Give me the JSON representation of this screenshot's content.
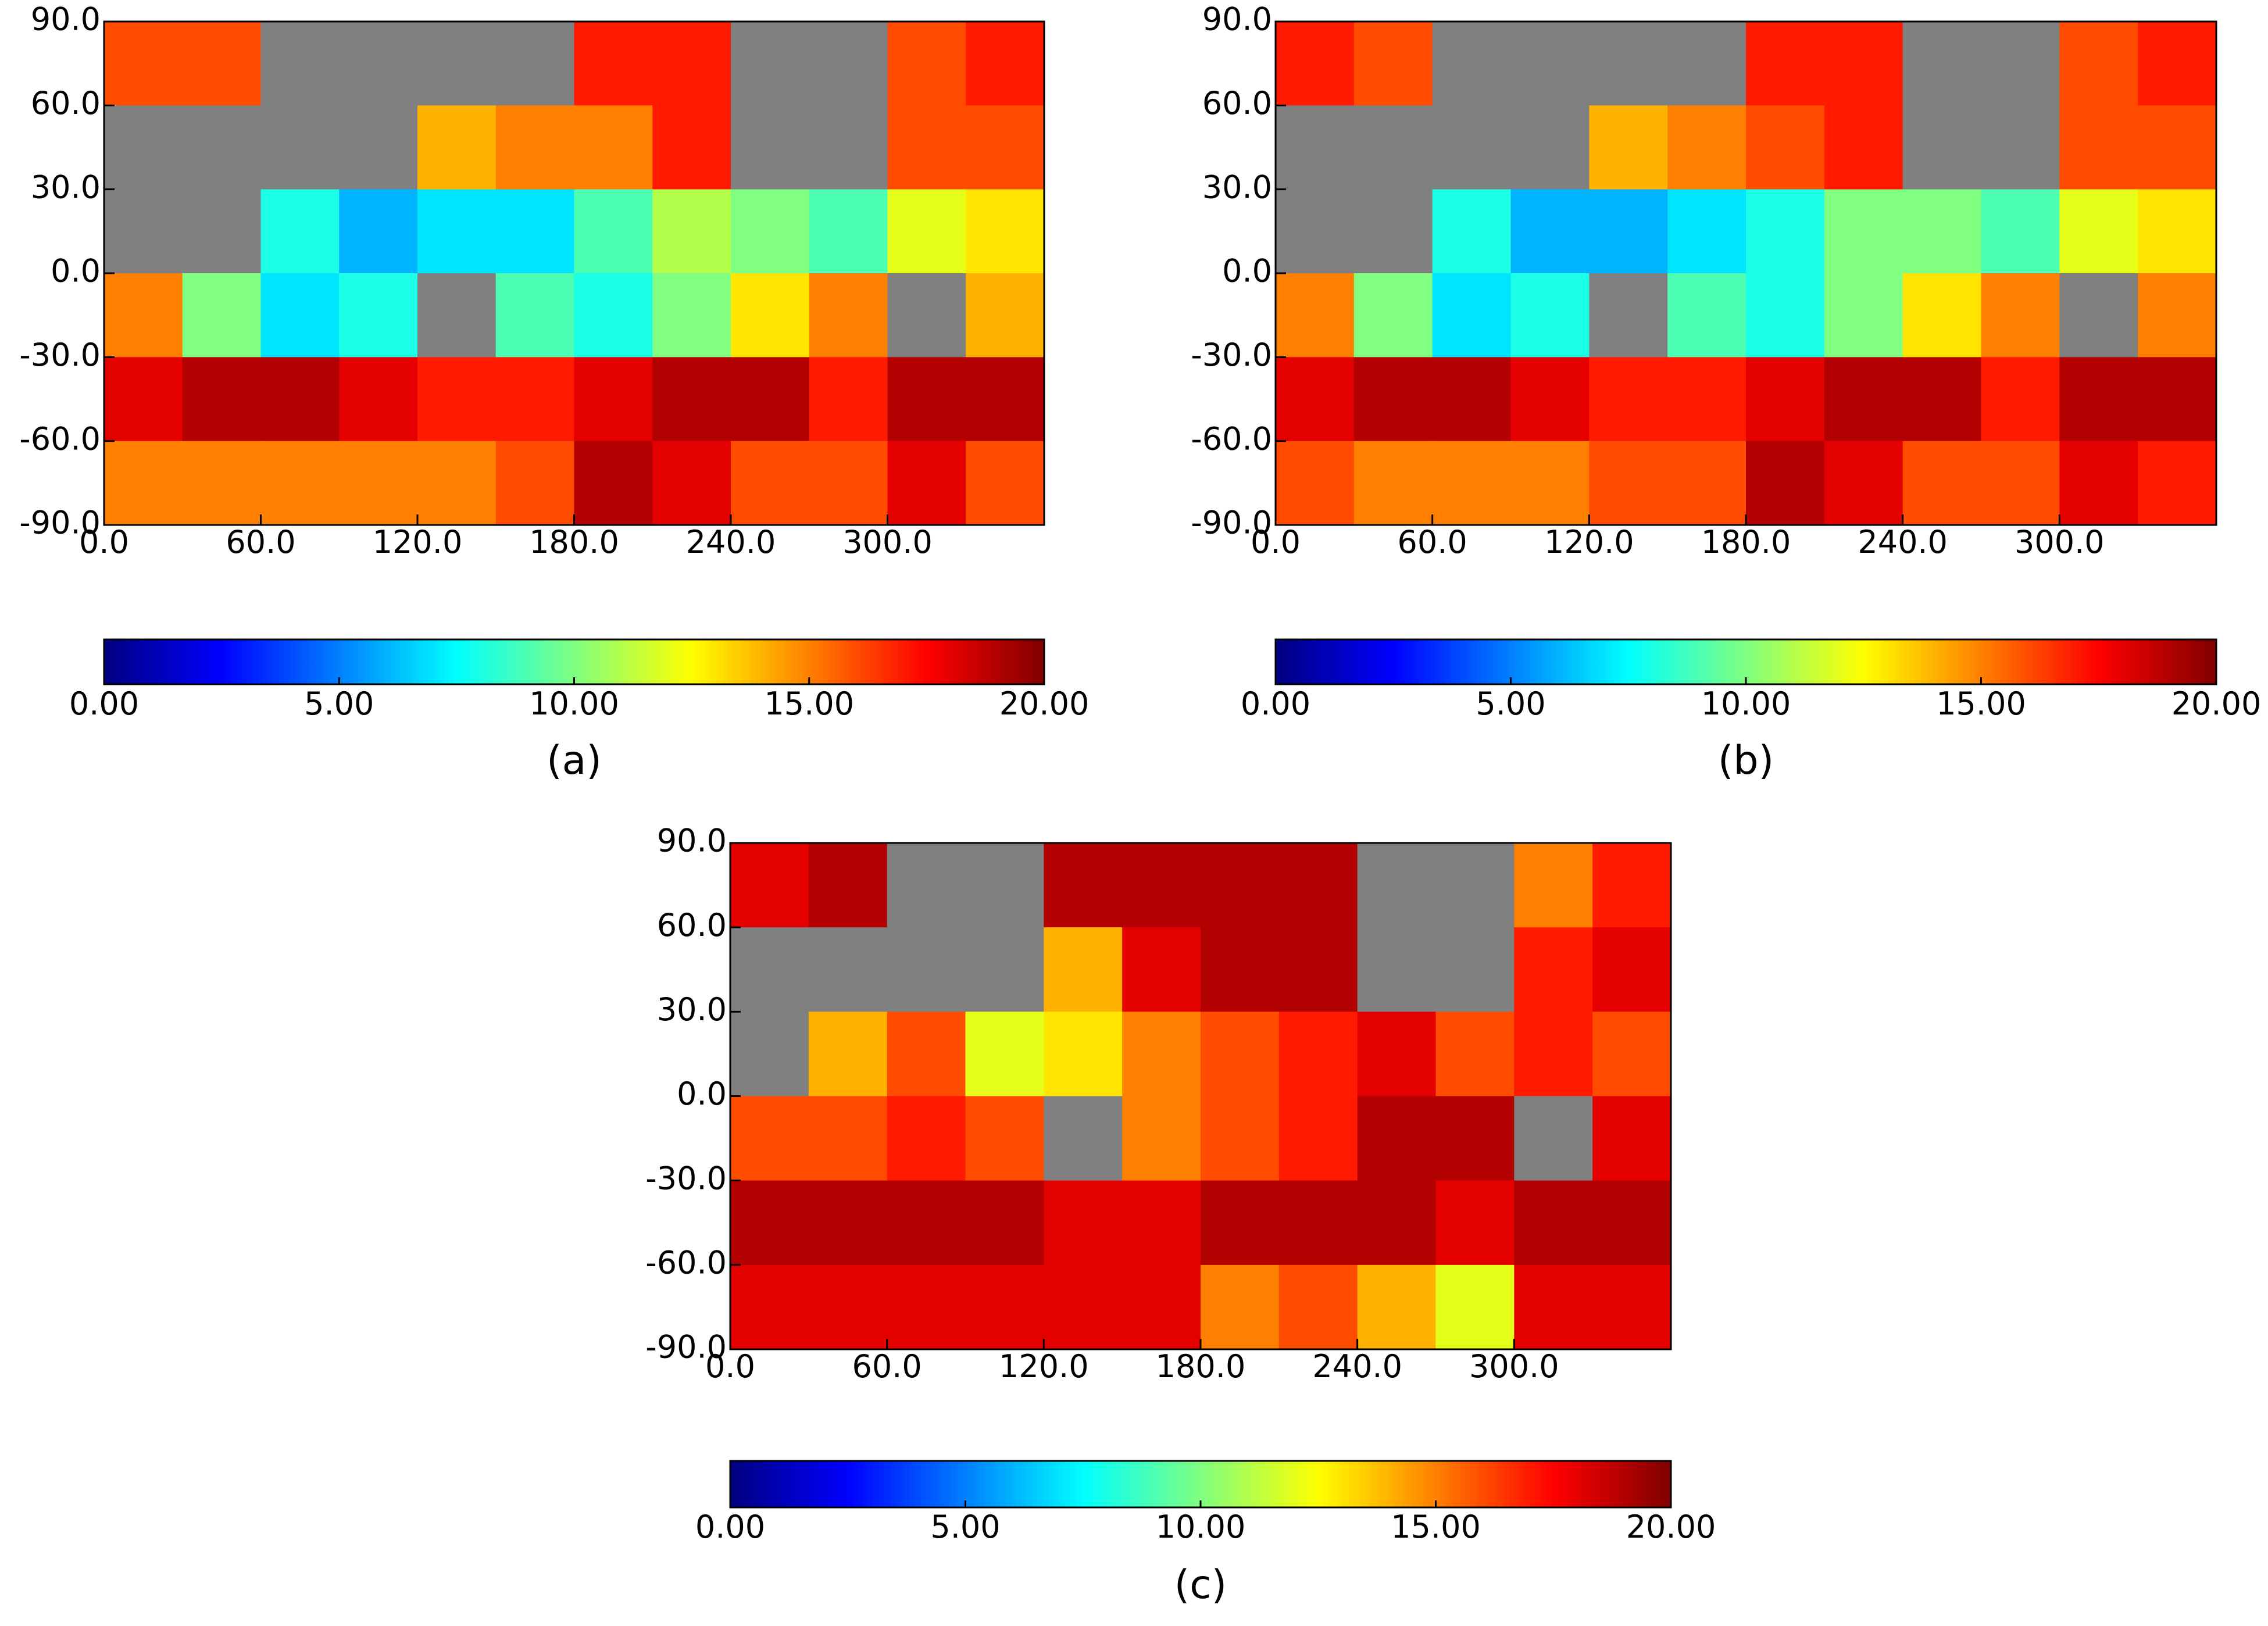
{
  "chart_data": [
    {
      "type": "heatmap",
      "caption": "(a)",
      "colormap": "jet",
      "nan_color": "#808080",
      "xbins": [
        0,
        30,
        60,
        90,
        120,
        150,
        180,
        210,
        240,
        270,
        300,
        330,
        360
      ],
      "ybins": [
        90,
        60,
        30,
        0,
        -30,
        -60,
        -90
      ],
      "values": [
        [
          16,
          16,
          null,
          null,
          null,
          null,
          17,
          17,
          null,
          null,
          16,
          17
        ],
        [
          null,
          null,
          null,
          null,
          14,
          15,
          15,
          17,
          null,
          null,
          16,
          16
        ],
        [
          null,
          null,
          8,
          6,
          7,
          7,
          9,
          11,
          10,
          9,
          12,
          13
        ],
        [
          15,
          10,
          7,
          8,
          null,
          9,
          8,
          10,
          13,
          15,
          null,
          14
        ],
        [
          18,
          19,
          19,
          18,
          17,
          17,
          18,
          19,
          19,
          17,
          19,
          19
        ],
        [
          15,
          15,
          15,
          15,
          15,
          16,
          19,
          18,
          16,
          16,
          18,
          16
        ]
      ],
      "xlim": [
        0,
        360
      ],
      "ylim": [
        -90,
        90
      ],
      "xticks": [
        {
          "value": 0,
          "label": "0.0"
        },
        {
          "value": 60,
          "label": "60.0"
        },
        {
          "value": 120,
          "label": "120.0"
        },
        {
          "value": 180,
          "label": "180.0"
        },
        {
          "value": 240,
          "label": "240.0"
        },
        {
          "value": 300,
          "label": "300.0"
        }
      ],
      "yticks": [
        {
          "value": 90,
          "label": "90.0"
        },
        {
          "value": 60,
          "label": "60.0"
        },
        {
          "value": 30,
          "label": "30.0"
        },
        {
          "value": 0,
          "label": "0.0"
        },
        {
          "value": -30,
          "label": "-30.0"
        },
        {
          "value": -60,
          "label": "-60.0"
        },
        {
          "value": -90,
          "label": "-90.0"
        }
      ],
      "clim": [
        0,
        20
      ],
      "cticks": [
        {
          "value": 0,
          "label": "0.00"
        },
        {
          "value": 5,
          "label": "5.00"
        },
        {
          "value": 10,
          "label": "10.00"
        },
        {
          "value": 15,
          "label": "15.00"
        },
        {
          "value": 20,
          "label": "20.00"
        }
      ]
    },
    {
      "type": "heatmap",
      "caption": "(b)",
      "colormap": "jet",
      "nan_color": "#808080",
      "xbins": [
        0,
        30,
        60,
        90,
        120,
        150,
        180,
        210,
        240,
        270,
        300,
        330,
        360
      ],
      "ybins": [
        90,
        60,
        30,
        0,
        -30,
        -60,
        -90
      ],
      "values": [
        [
          17,
          16,
          null,
          null,
          null,
          null,
          17,
          17,
          null,
          null,
          16,
          17
        ],
        [
          null,
          null,
          null,
          null,
          14,
          15,
          16,
          17,
          null,
          null,
          16,
          16
        ],
        [
          null,
          null,
          8,
          6,
          6,
          7,
          8,
          10,
          10,
          9,
          12,
          13
        ],
        [
          15,
          10,
          7,
          8,
          null,
          9,
          8,
          10,
          13,
          15,
          null,
          15
        ],
        [
          18,
          19,
          19,
          18,
          17,
          17,
          18,
          19,
          19,
          17,
          19,
          19
        ],
        [
          16,
          15,
          15,
          15,
          16,
          16,
          19,
          18,
          16,
          16,
          18,
          17
        ]
      ],
      "xlim": [
        0,
        360
      ],
      "ylim": [
        -90,
        90
      ],
      "xticks": [
        {
          "value": 0,
          "label": "0.0"
        },
        {
          "value": 60,
          "label": "60.0"
        },
        {
          "value": 120,
          "label": "120.0"
        },
        {
          "value": 180,
          "label": "180.0"
        },
        {
          "value": 240,
          "label": "240.0"
        },
        {
          "value": 300,
          "label": "300.0"
        }
      ],
      "yticks": [
        {
          "value": 90,
          "label": "90.0"
        },
        {
          "value": 60,
          "label": "60.0"
        },
        {
          "value": 30,
          "label": "30.0"
        },
        {
          "value": 0,
          "label": "0.0"
        },
        {
          "value": -30,
          "label": "-30.0"
        },
        {
          "value": -60,
          "label": "-60.0"
        },
        {
          "value": -90,
          "label": "-90.0"
        }
      ],
      "clim": [
        0,
        20
      ],
      "cticks": [
        {
          "value": 0,
          "label": "0.00"
        },
        {
          "value": 5,
          "label": "5.00"
        },
        {
          "value": 10,
          "label": "10.00"
        },
        {
          "value": 15,
          "label": "15.00"
        },
        {
          "value": 20,
          "label": "20.00"
        }
      ]
    },
    {
      "type": "heatmap",
      "caption": "(c)",
      "colormap": "jet",
      "nan_color": "#808080",
      "xbins": [
        0,
        30,
        60,
        90,
        120,
        150,
        180,
        210,
        240,
        270,
        300,
        330,
        360
      ],
      "ybins": [
        90,
        60,
        30,
        0,
        -30,
        -60,
        -90
      ],
      "values": [
        [
          18,
          19,
          null,
          null,
          19,
          19,
          19,
          19,
          null,
          null,
          15,
          17
        ],
        [
          null,
          null,
          null,
          null,
          14,
          18,
          19,
          19,
          null,
          null,
          17,
          18
        ],
        [
          null,
          14,
          16,
          12,
          13,
          15,
          16,
          17,
          18,
          16,
          17,
          16
        ],
        [
          16,
          16,
          17,
          16,
          null,
          15,
          16,
          17,
          19,
          19,
          null,
          18
        ],
        [
          19,
          19,
          19,
          19,
          18,
          18,
          19,
          19,
          19,
          18,
          19,
          19
        ],
        [
          18,
          18,
          18,
          18,
          18,
          18,
          15,
          16,
          14,
          12,
          18,
          18
        ]
      ],
      "xlim": [
        0,
        360
      ],
      "ylim": [
        -90,
        90
      ],
      "xticks": [
        {
          "value": 0,
          "label": "0.0"
        },
        {
          "value": 60,
          "label": "60.0"
        },
        {
          "value": 120,
          "label": "120.0"
        },
        {
          "value": 180,
          "label": "180.0"
        },
        {
          "value": 240,
          "label": "240.0"
        },
        {
          "value": 300,
          "label": "300.0"
        }
      ],
      "yticks": [
        {
          "value": 90,
          "label": "90.0"
        },
        {
          "value": 60,
          "label": "60.0"
        },
        {
          "value": 30,
          "label": "30.0"
        },
        {
          "value": 0,
          "label": "0.0"
        },
        {
          "value": -30,
          "label": "-30.0"
        },
        {
          "value": -60,
          "label": "-60.0"
        },
        {
          "value": -90,
          "label": "-90.0"
        }
      ],
      "clim": [
        0,
        20
      ],
      "cticks": [
        {
          "value": 0,
          "label": "0.00"
        },
        {
          "value": 5,
          "label": "5.00"
        },
        {
          "value": 10,
          "label": "10.00"
        },
        {
          "value": 15,
          "label": "15.00"
        },
        {
          "value": 20,
          "label": "20.00"
        }
      ]
    }
  ]
}
